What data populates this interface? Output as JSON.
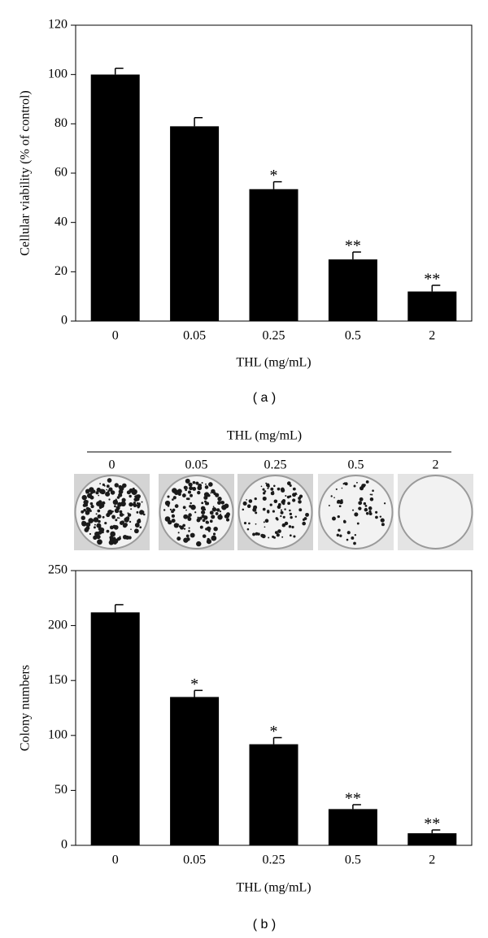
{
  "chart_data": [
    {
      "type": "bar",
      "panel_label": "( a )",
      "x_label": "THL (mg/mL)",
      "y_label": "Cellular viability (% of control)",
      "categories": [
        "0",
        "0.05",
        "0.25",
        "0.5",
        "2"
      ],
      "values": [
        100,
        79,
        53.5,
        25,
        12
      ],
      "errors": [
        2.5,
        3.5,
        3,
        3,
        2.5
      ],
      "annotations": [
        null,
        null,
        "*",
        "**",
        "**"
      ],
      "color": "#000000",
      "ylim": [
        0,
        120
      ],
      "yticks": [
        0,
        20,
        40,
        60,
        80,
        100,
        120
      ]
    },
    {
      "type": "bar",
      "panel_label": "( b )",
      "x_label": "THL (mg/mL)",
      "y_label": "Colony numbers",
      "categories": [
        "0",
        "0.05",
        "0.25",
        "0.5",
        "2"
      ],
      "values": [
        212,
        135,
        92,
        33,
        11
      ],
      "errors": [
        7,
        6,
        6,
        4,
        3
      ],
      "annotations": [
        null,
        "*",
        "*",
        "**",
        "**"
      ],
      "color": "#000000",
      "ylim": [
        0,
        250
      ],
      "yticks": [
        0,
        50,
        100,
        150,
        200,
        250
      ]
    }
  ],
  "dish_panel": {
    "title": "THL (mg/mL)",
    "labels": [
      "0",
      "0.05",
      "0.25",
      "0.5",
      "2"
    ]
  }
}
